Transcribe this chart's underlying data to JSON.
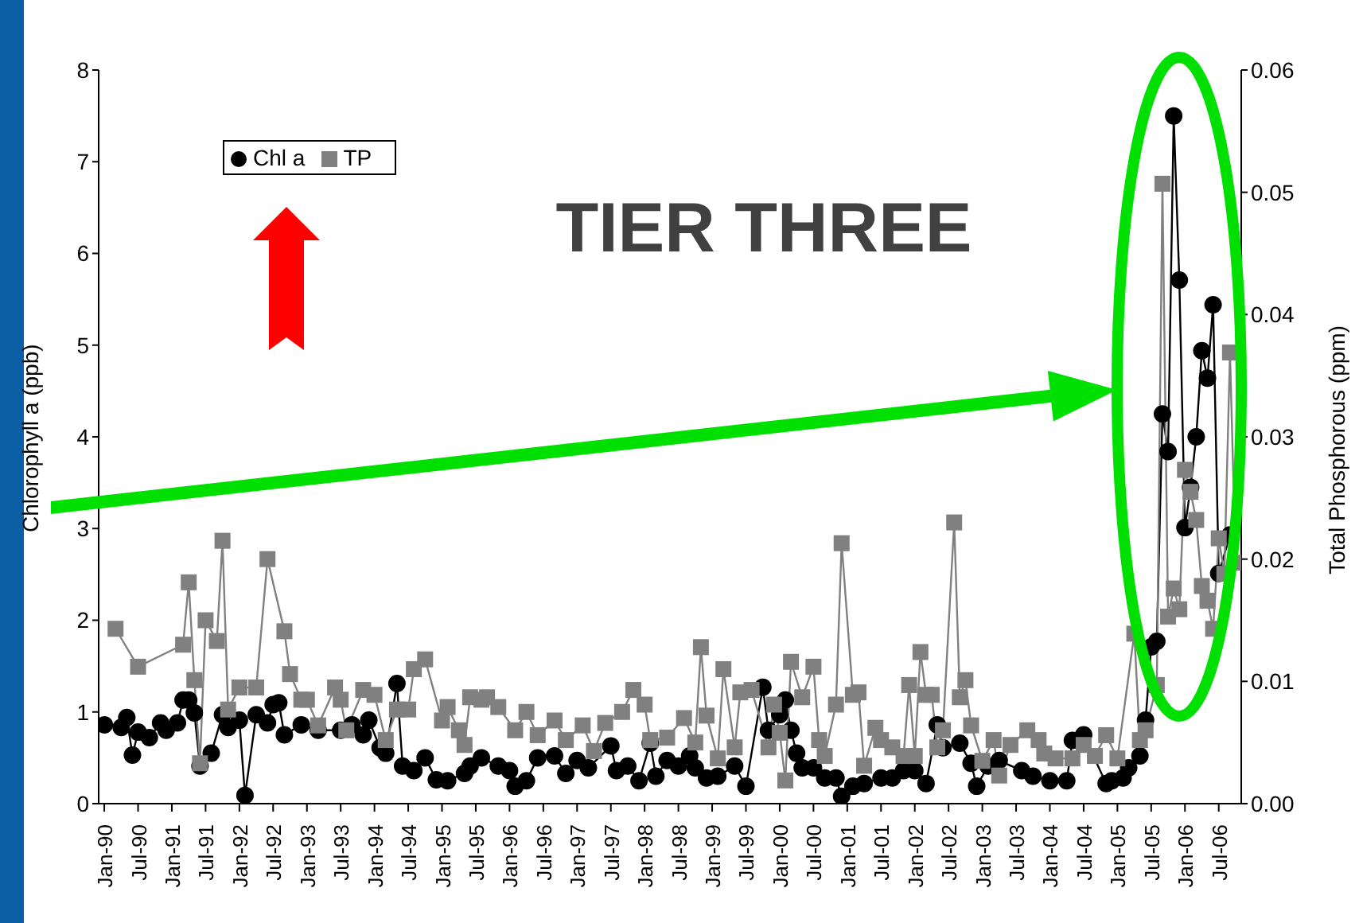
{
  "chart_data": {
    "type": "line",
    "ylabel": "Chlorophyll a (ppb)",
    "y2label": "Total Phosphorous (ppm)",
    "annotations": [
      "TIER THREE"
    ],
    "legend": "top left",
    "grid": false,
    "xlim": [
      "1989-12",
      "2006-11"
    ],
    "xticks": [
      {
        "value": "1990-01",
        "label": "Jan-90"
      },
      {
        "value": "1990-07",
        "label": "Jul-90"
      },
      {
        "value": "1991-01",
        "label": "Jan-91"
      },
      {
        "value": "1991-07",
        "label": "Jul-91"
      },
      {
        "value": "1992-01",
        "label": "Jan-92"
      },
      {
        "value": "1992-07",
        "label": "Jul-92"
      },
      {
        "value": "1993-01",
        "label": "Jan-93"
      },
      {
        "value": "1993-07",
        "label": "Jul-93"
      },
      {
        "value": "1994-01",
        "label": "Jan-94"
      },
      {
        "value": "1994-07",
        "label": "Jul-94"
      },
      {
        "value": "1995-01",
        "label": "Jan-95"
      },
      {
        "value": "1995-07",
        "label": "Jul-95"
      },
      {
        "value": "1996-01",
        "label": "Jan-96"
      },
      {
        "value": "1996-07",
        "label": "Jul-96"
      },
      {
        "value": "1997-01",
        "label": "Jan-97"
      },
      {
        "value": "1997-07",
        "label": "Jul-97"
      },
      {
        "value": "1998-01",
        "label": "Jan-98"
      },
      {
        "value": "1998-07",
        "label": "Jul-98"
      },
      {
        "value": "1999-01",
        "label": "Jan-99"
      },
      {
        "value": "1999-07",
        "label": "Jul-99"
      },
      {
        "value": "2000-01",
        "label": "Jan-00"
      },
      {
        "value": "2000-07",
        "label": "Jul-00"
      },
      {
        "value": "2001-01",
        "label": "Jan-01"
      },
      {
        "value": "2001-07",
        "label": "Jul-01"
      },
      {
        "value": "2002-01",
        "label": "Jan-02"
      },
      {
        "value": "2002-07",
        "label": "Jul-02"
      },
      {
        "value": "2003-01",
        "label": "Jan-03"
      },
      {
        "value": "2003-07",
        "label": "Jul-03"
      },
      {
        "value": "2004-01",
        "label": "Jan-04"
      },
      {
        "value": "2004-07",
        "label": "Jul-04"
      },
      {
        "value": "2005-01",
        "label": "Jan-05"
      },
      {
        "value": "2005-07",
        "label": "Jul-05"
      },
      {
        "value": "2006-01",
        "label": "Jan-06"
      },
      {
        "value": "2006-07",
        "label": "Jul-06"
      }
    ],
    "ylim": [
      0,
      8
    ],
    "yticks": [
      0,
      1,
      2,
      3,
      4,
      5,
      6,
      7,
      8
    ],
    "y2lim": [
      0,
      0.06
    ],
    "y2ticks": [
      {
        "value": 0,
        "label": "0.00"
      },
      {
        "value": 0.01,
        "label": "0.01"
      },
      {
        "value": 0.02,
        "label": "0.02"
      },
      {
        "value": 0.03,
        "label": "0.03"
      },
      {
        "value": 0.04,
        "label": "0.04"
      },
      {
        "value": 0.05,
        "label": "0.05"
      },
      {
        "value": 0.06,
        "label": "0.06"
      }
    ],
    "series": [
      {
        "name": "Chl a",
        "color": "#000000",
        "marker": "circle",
        "axis": "y",
        "x": [
          "1990-01",
          "1990-04",
          "1990-05",
          "1990-06",
          "1990-07",
          "1990-09",
          "1990-11",
          "1990-12",
          "1991-02",
          "1991-03",
          "1991-04",
          "1991-05",
          "1991-06",
          "1991-08",
          "1991-10",
          "1991-11",
          "1992-01",
          "1992-02",
          "1992-04",
          "1992-06",
          "1992-07",
          "1992-08",
          "1992-09",
          "1992-12",
          "1993-03",
          "1993-07",
          "1993-09",
          "1993-11",
          "1993-12",
          "1994-02",
          "1994-03",
          "1994-05",
          "1994-06",
          "1994-08",
          "1994-10",
          "1994-12",
          "1995-02",
          "1995-05",
          "1995-06",
          "1995-08",
          "1995-11",
          "1996-01",
          "1996-02",
          "1996-04",
          "1996-06",
          "1996-09",
          "1996-11",
          "1997-01",
          "1997-03",
          "1997-07",
          "1997-08",
          "1997-10",
          "1997-12",
          "1998-02",
          "1998-03",
          "1998-05",
          "1998-07",
          "1998-09",
          "1998-10",
          "1998-12",
          "1999-02",
          "1999-05",
          "1999-07",
          "1999-10",
          "1999-11",
          "2000-01",
          "2000-02",
          "2000-03",
          "2000-04",
          "2000-05",
          "2000-07",
          "2000-09",
          "2000-11",
          "2000-12",
          "2001-02",
          "2001-04",
          "2001-07",
          "2001-09",
          "2001-11",
          "2002-01",
          "2002-03",
          "2002-05",
          "2002-06",
          "2002-09",
          "2002-11",
          "2002-12",
          "2003-02",
          "2003-04",
          "2003-08",
          "2003-10",
          "2004-01",
          "2004-04",
          "2004-05",
          "2004-07",
          "2004-11",
          "2004-12",
          "2005-02",
          "2005-03",
          "2005-05",
          "2005-06",
          "2005-07",
          "2005-08",
          "2005-09",
          "2005-10",
          "2005-11",
          "2005-12",
          "2006-01",
          "2006-02",
          "2006-03",
          "2006-04",
          "2006-05",
          "2006-06",
          "2006-07",
          "2006-09"
        ],
        "values": [
          0.86,
          0.83,
          0.94,
          0.53,
          0.78,
          0.72,
          0.88,
          0.8,
          0.88,
          1.13,
          1.13,
          0.99,
          0.41,
          0.55,
          0.97,
          0.83,
          0.91,
          0.09,
          0.97,
          0.88,
          1.08,
          1.1,
          0.75,
          0.86,
          0.8,
          0.8,
          0.86,
          0.75,
          0.91,
          0.61,
          0.55,
          1.31,
          0.41,
          0.36,
          0.5,
          0.26,
          0.25,
          0.33,
          0.41,
          0.5,
          0.41,
          0.36,
          0.19,
          0.25,
          0.5,
          0.52,
          0.33,
          0.47,
          0.39,
          0.63,
          0.36,
          0.41,
          0.25,
          0.66,
          0.3,
          0.47,
          0.41,
          0.52,
          0.39,
          0.28,
          0.3,
          0.41,
          0.19,
          1.27,
          0.8,
          0.97,
          1.13,
          0.8,
          0.55,
          0.39,
          0.39,
          0.28,
          0.28,
          0.08,
          0.19,
          0.22,
          0.28,
          0.28,
          0.36,
          0.36,
          0.22,
          0.86,
          0.61,
          0.66,
          0.44,
          0.19,
          0.41,
          0.47,
          0.36,
          0.3,
          0.25,
          0.25,
          0.69,
          0.75,
          0.22,
          0.25,
          0.28,
          0.39,
          0.52,
          0.91,
          1.71,
          1.77,
          4.25,
          3.84,
          7.5,
          5.71,
          3.01,
          3.45,
          4.0,
          4.94,
          4.64,
          5.44,
          2.51,
          2.93
        ]
      },
      {
        "name": "TP",
        "color": "#808080",
        "marker": "square",
        "axis": "y2",
        "x": [
          "1990-03",
          "1990-07",
          "1991-03",
          "1991-04",
          "1991-05",
          "1991-06",
          "1991-07",
          "1991-09",
          "1991-10",
          "1991-11",
          "1992-01",
          "1992-04",
          "1992-06",
          "1992-09",
          "1992-10",
          "1992-12",
          "1993-01",
          "1993-03",
          "1993-06",
          "1993-07",
          "1993-08",
          "1993-11",
          "1994-01",
          "1994-03",
          "1994-05",
          "1994-07",
          "1994-08",
          "1994-10",
          "1995-01",
          "1995-02",
          "1995-04",
          "1995-05",
          "1995-06",
          "1995-08",
          "1995-09",
          "1995-11",
          "1996-02",
          "1996-04",
          "1996-06",
          "1996-09",
          "1996-11",
          "1997-02",
          "1997-04",
          "1997-06",
          "1997-09",
          "1997-11",
          "1998-01",
          "1998-02",
          "1998-05",
          "1998-08",
          "1998-10",
          "1998-11",
          "1998-12",
          "1999-02",
          "1999-03",
          "1999-05",
          "1999-06",
          "1999-08",
          "1999-11",
          "1999-12",
          "2000-01",
          "2000-02",
          "2000-03",
          "2000-05",
          "2000-07",
          "2000-08",
          "2000-09",
          "2000-11",
          "2000-12",
          "2001-02",
          "2001-03",
          "2001-04",
          "2001-06",
          "2001-07",
          "2001-09",
          "2001-11",
          "2001-12",
          "2002-01",
          "2002-02",
          "2002-03",
          "2002-04",
          "2002-05",
          "2002-06",
          "2002-08",
          "2002-09",
          "2002-10",
          "2002-11",
          "2003-01",
          "2003-03",
          "2003-04",
          "2003-06",
          "2003-09",
          "2003-11",
          "2003-12",
          "2004-02",
          "2004-05",
          "2004-07",
          "2004-09",
          "2004-11",
          "2005-01",
          "2005-04",
          "2005-05",
          "2005-06",
          "2005-08",
          "2005-09",
          "2005-10",
          "2005-11",
          "2005-12",
          "2006-01",
          "2006-02",
          "2006-03",
          "2006-04",
          "2006-05",
          "2006-06",
          "2006-07",
          "2006-08",
          "2006-09",
          "2006-10"
        ],
        "values": [
          0.0143,
          0.0112,
          0.013,
          0.0181,
          0.0101,
          0.0033,
          0.015,
          0.0133,
          0.0215,
          0.0077,
          0.0095,
          0.0095,
          0.02,
          0.0141,
          0.0106,
          0.0085,
          0.0085,
          0.0064,
          0.0095,
          0.0085,
          0.006,
          0.0093,
          0.0089,
          0.0052,
          0.0077,
          0.0077,
          0.011,
          0.0118,
          0.0068,
          0.0079,
          0.006,
          0.0048,
          0.0087,
          0.0085,
          0.0087,
          0.0079,
          0.006,
          0.0075,
          0.0056,
          0.0068,
          0.0052,
          0.0064,
          0.0043,
          0.0066,
          0.0075,
          0.0093,
          0.0081,
          0.0052,
          0.0054,
          0.007,
          0.005,
          0.0128,
          0.0072,
          0.0037,
          0.011,
          0.0046,
          0.0091,
          0.0093,
          0.0046,
          0.0081,
          0.0058,
          0.0019,
          0.0116,
          0.0087,
          0.0112,
          0.0052,
          0.0039,
          0.0081,
          0.0213,
          0.0089,
          0.0091,
          0.0031,
          0.0062,
          0.0052,
          0.0046,
          0.0039,
          0.0097,
          0.0039,
          0.0124,
          0.0089,
          0.0089,
          0.0046,
          0.006,
          0.023,
          0.0087,
          0.0101,
          0.0064,
          0.0035,
          0.0052,
          0.0023,
          0.0048,
          0.006,
          0.0052,
          0.0041,
          0.0037,
          0.0037,
          0.0048,
          0.0039,
          0.0056,
          0.0037,
          0.0139,
          0.0052,
          0.006,
          0.0097,
          0.0507,
          0.0153,
          0.0176,
          0.0159,
          0.0273,
          0.0255,
          0.0232,
          0.0178,
          0.0166,
          0.0143,
          0.0217,
          0.0188,
          0.0369,
          0.0197
        ]
      }
    ]
  }
}
